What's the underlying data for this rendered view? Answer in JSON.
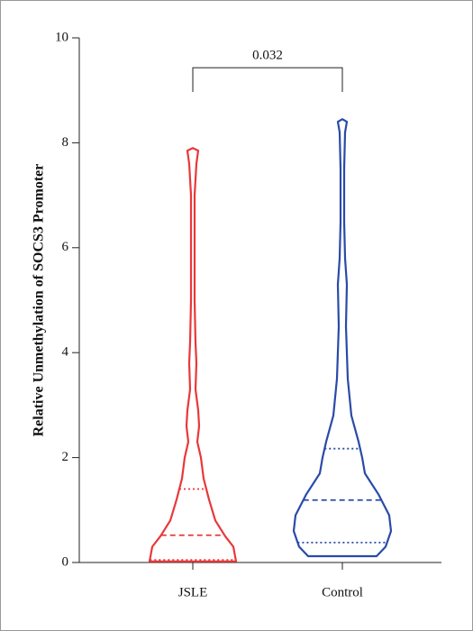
{
  "chart_data": {
    "type": "violin",
    "ylabel": "Relative Unmethylation of SOCS3 Promoter",
    "categories": [
      "JSLE",
      "Control"
    ],
    "ylim": [
      0,
      10
    ],
    "yticks": [
      0,
      2,
      4,
      6,
      8,
      10
    ],
    "series": [
      {
        "name": "JSLE",
        "color": "#e8383a",
        "min": 0.02,
        "max": 7.9,
        "q1": 0.05,
        "median": 0.52,
        "q3": 1.4,
        "profile_y": [
          0.02,
          0.3,
          0.5,
          0.8,
          1.2,
          1.6,
          2.0,
          2.3,
          2.6,
          2.9,
          3.3,
          3.8,
          4.2,
          5.0,
          6.0,
          7.0,
          7.6,
          7.85,
          7.9
        ],
        "density": [
          48,
          45,
          36,
          25,
          18,
          12,
          9,
          5,
          7,
          6,
          3,
          4,
          3,
          2,
          2,
          2,
          4,
          6,
          0
        ]
      },
      {
        "name": "Control",
        "color": "#2a4aa8",
        "min": 0.12,
        "max": 8.45,
        "q1": 0.38,
        "median": 1.19,
        "q3": 2.17,
        "profile_y": [
          0.12,
          0.3,
          0.6,
          0.9,
          1.3,
          1.7,
          2.0,
          2.3,
          2.8,
          3.5,
          4.5,
          5.3,
          5.8,
          6.5,
          7.5,
          8.2,
          8.4,
          8.45
        ],
        "density": [
          38,
          48,
          54,
          52,
          40,
          25,
          22,
          18,
          10,
          6,
          4,
          5,
          3,
          2,
          2,
          3,
          5,
          0
        ]
      }
    ],
    "annotations": [
      {
        "text": "0.032",
        "y": 9.43,
        "y_end": 8.97,
        "from": 0,
        "to": 1
      }
    ]
  }
}
